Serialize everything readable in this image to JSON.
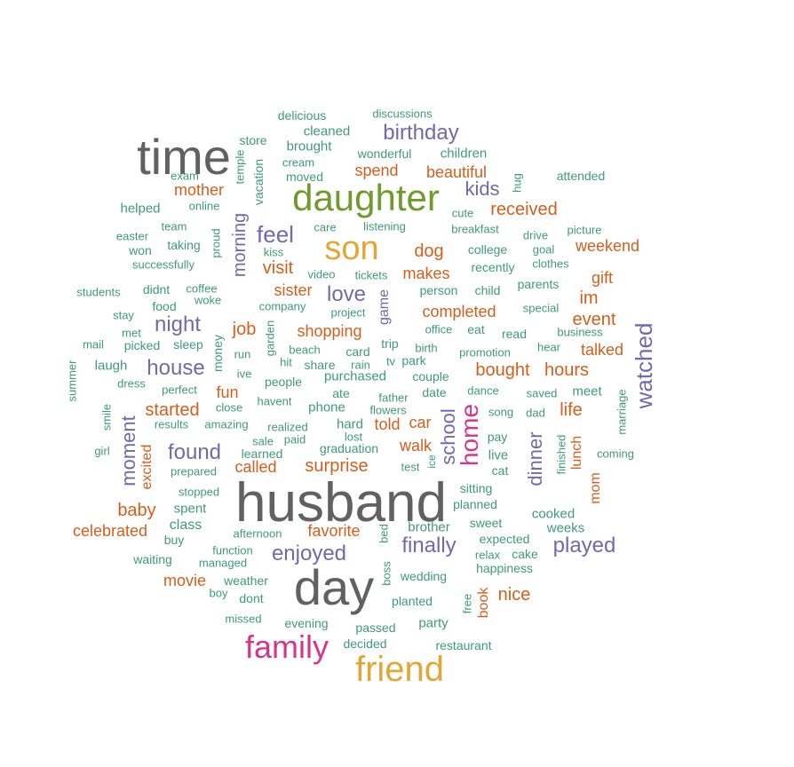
{
  "palette": {
    "teal": "#3f9a78",
    "orange": "#d45f1c",
    "purple": "#6f6aad",
    "gray": "#616161",
    "olive": "#6f9b2d",
    "gold": "#e3a634",
    "magenta": "#d6368a"
  },
  "words": [
    {
      "text": "husband",
      "color": "gray",
      "weight": 100
    },
    {
      "text": "time",
      "color": "gray",
      "weight": 75
    },
    {
      "text": "day",
      "color": "gray",
      "weight": 80
    },
    {
      "text": "daughter",
      "color": "olive",
      "weight": 62
    },
    {
      "text": "son",
      "color": "gold",
      "weight": 60
    },
    {
      "text": "friend",
      "color": "gold",
      "weight": 58
    },
    {
      "text": "family",
      "color": "magenta",
      "weight": 50
    },
    {
      "text": "home",
      "color": "magenta",
      "weight": 40
    },
    {
      "text": "birthday",
      "color": "purple",
      "weight": 30
    },
    {
      "text": "kids",
      "color": "purple",
      "weight": 28
    },
    {
      "text": "feel",
      "color": "purple",
      "weight": 32
    },
    {
      "text": "love",
      "color": "purple",
      "weight": 30
    },
    {
      "text": "night",
      "color": "purple",
      "weight": 30
    },
    {
      "text": "house",
      "color": "purple",
      "weight": 28
    },
    {
      "text": "found",
      "color": "purple",
      "weight": 30
    },
    {
      "text": "enjoyed",
      "color": "purple",
      "weight": 30
    },
    {
      "text": "finally",
      "color": "purple",
      "weight": 30
    },
    {
      "text": "played",
      "color": "purple",
      "weight": 30
    },
    {
      "text": "watched",
      "color": "purple",
      "weight": 32
    },
    {
      "text": "moment",
      "color": "purple",
      "weight": 28
    },
    {
      "text": "morning",
      "color": "purple",
      "weight": 26
    },
    {
      "text": "school",
      "color": "purple",
      "weight": 28
    },
    {
      "text": "dinner",
      "color": "purple",
      "weight": 28
    },
    {
      "text": "received",
      "color": "orange",
      "weight": 22
    },
    {
      "text": "mother",
      "color": "orange",
      "weight": 20
    },
    {
      "text": "spend",
      "color": "orange",
      "weight": 20
    },
    {
      "text": "beautiful",
      "color": "orange",
      "weight": 20
    },
    {
      "text": "dog",
      "color": "orange",
      "weight": 22
    },
    {
      "text": "weekend",
      "color": "orange",
      "weight": 20
    },
    {
      "text": "visit",
      "color": "orange",
      "weight": 22
    },
    {
      "text": "makes",
      "color": "orange",
      "weight": 20
    },
    {
      "text": "gift",
      "color": "orange",
      "weight": 20
    },
    {
      "text": "sister",
      "color": "orange",
      "weight": 20
    },
    {
      "text": "im",
      "color": "orange",
      "weight": 20
    },
    {
      "text": "completed",
      "color": "orange",
      "weight": 20
    },
    {
      "text": "event",
      "color": "orange",
      "weight": 22
    },
    {
      "text": "job",
      "color": "orange",
      "weight": 22
    },
    {
      "text": "shopping",
      "color": "orange",
      "weight": 20
    },
    {
      "text": "talked",
      "color": "orange",
      "weight": 20
    },
    {
      "text": "bought",
      "color": "orange",
      "weight": 22
    },
    {
      "text": "hours",
      "color": "orange",
      "weight": 22
    },
    {
      "text": "fun",
      "color": "orange",
      "weight": 20
    },
    {
      "text": "started",
      "color": "orange",
      "weight": 22
    },
    {
      "text": "life",
      "color": "orange",
      "weight": 22
    },
    {
      "text": "told",
      "color": "orange",
      "weight": 20
    },
    {
      "text": "car",
      "color": "orange",
      "weight": 20
    },
    {
      "text": "walk",
      "color": "orange",
      "weight": 20
    },
    {
      "text": "called",
      "color": "orange",
      "weight": 20
    },
    {
      "text": "surprise",
      "color": "orange",
      "weight": 22
    },
    {
      "text": "excited",
      "color": "orange",
      "weight": 18
    },
    {
      "text": "lunch",
      "color": "orange",
      "weight": 18
    },
    {
      "text": "mom",
      "color": "orange",
      "weight": 18
    },
    {
      "text": "baby",
      "color": "orange",
      "weight": 22
    },
    {
      "text": "celebrated",
      "color": "orange",
      "weight": 20
    },
    {
      "text": "favorite",
      "color": "orange",
      "weight": 20
    },
    {
      "text": "movie",
      "color": "orange",
      "weight": 20
    },
    {
      "text": "nice",
      "color": "orange",
      "weight": 22
    },
    {
      "text": "book",
      "color": "orange",
      "weight": 18
    },
    {
      "text": "game",
      "color": "purple",
      "weight": 18
    },
    {
      "text": "delicious",
      "color": "teal",
      "weight": 16
    },
    {
      "text": "discussions",
      "color": "teal",
      "weight": 14
    },
    {
      "text": "cleaned",
      "color": "teal",
      "weight": 16
    },
    {
      "text": "store",
      "color": "teal",
      "weight": 16
    },
    {
      "text": "brought",
      "color": "teal",
      "weight": 17
    },
    {
      "text": "wonderful",
      "color": "teal",
      "weight": 16
    },
    {
      "text": "children",
      "color": "teal",
      "weight": 17
    },
    {
      "text": "cream",
      "color": "teal",
      "weight": 14
    },
    {
      "text": "temple",
      "color": "teal",
      "weight": 14
    },
    {
      "text": "vacation",
      "color": "teal",
      "weight": 16
    },
    {
      "text": "exam",
      "color": "teal",
      "weight": 14
    },
    {
      "text": "moved",
      "color": "teal",
      "weight": 16
    },
    {
      "text": "hug",
      "color": "teal",
      "weight": 14
    },
    {
      "text": "attended",
      "color": "teal",
      "weight": 16
    },
    {
      "text": "helped",
      "color": "teal",
      "weight": 16
    },
    {
      "text": "online",
      "color": "teal",
      "weight": 14
    },
    {
      "text": "cute",
      "color": "teal",
      "weight": 14
    },
    {
      "text": "easter",
      "color": "teal",
      "weight": 14
    },
    {
      "text": "team",
      "color": "teal",
      "weight": 14
    },
    {
      "text": "care",
      "color": "teal",
      "weight": 14
    },
    {
      "text": "listening",
      "color": "teal",
      "weight": 14
    },
    {
      "text": "breakfast",
      "color": "teal",
      "weight": 14
    },
    {
      "text": "drive",
      "color": "teal",
      "weight": 14
    },
    {
      "text": "picture",
      "color": "teal",
      "weight": 14
    },
    {
      "text": "proud",
      "color": "teal",
      "weight": 14
    },
    {
      "text": "won",
      "color": "teal",
      "weight": 16
    },
    {
      "text": "taking",
      "color": "teal",
      "weight": 16
    },
    {
      "text": "kiss",
      "color": "teal",
      "weight": 14
    },
    {
      "text": "college",
      "color": "teal",
      "weight": 16
    },
    {
      "text": "goal",
      "color": "teal",
      "weight": 14
    },
    {
      "text": "successfully",
      "color": "teal",
      "weight": 14
    },
    {
      "text": "recently",
      "color": "teal",
      "weight": 16
    },
    {
      "text": "clothes",
      "color": "teal",
      "weight": 14
    },
    {
      "text": "video",
      "color": "teal",
      "weight": 14
    },
    {
      "text": "tickets",
      "color": "teal",
      "weight": 14
    },
    {
      "text": "students",
      "color": "teal",
      "weight": 14
    },
    {
      "text": "didnt",
      "color": "teal",
      "weight": 16
    },
    {
      "text": "coffee",
      "color": "teal",
      "weight": 14
    },
    {
      "text": "person",
      "color": "teal",
      "weight": 16
    },
    {
      "text": "child",
      "color": "teal",
      "weight": 16
    },
    {
      "text": "parents",
      "color": "teal",
      "weight": 16
    },
    {
      "text": "food",
      "color": "teal",
      "weight": 16
    },
    {
      "text": "woke",
      "color": "teal",
      "weight": 14
    },
    {
      "text": "company",
      "color": "teal",
      "weight": 14
    },
    {
      "text": "project",
      "color": "teal",
      "weight": 14
    },
    {
      "text": "special",
      "color": "teal",
      "weight": 14
    },
    {
      "text": "stay",
      "color": "teal",
      "weight": 14
    },
    {
      "text": "office",
      "color": "teal",
      "weight": 14
    },
    {
      "text": "business",
      "color": "teal",
      "weight": 14
    },
    {
      "text": "met",
      "color": "teal",
      "weight": 14
    },
    {
      "text": "garden",
      "color": "teal",
      "weight": 14
    },
    {
      "text": "eat",
      "color": "teal",
      "weight": 16
    },
    {
      "text": "read",
      "color": "teal",
      "weight": 16
    },
    {
      "text": "mail",
      "color": "teal",
      "weight": 14
    },
    {
      "text": "picked",
      "color": "teal",
      "weight": 16
    },
    {
      "text": "sleep",
      "color": "teal",
      "weight": 16
    },
    {
      "text": "money",
      "color": "teal",
      "weight": 16
    },
    {
      "text": "beach",
      "color": "teal",
      "weight": 14
    },
    {
      "text": "card",
      "color": "teal",
      "weight": 14
    },
    {
      "text": "trip",
      "color": "teal",
      "weight": 16
    },
    {
      "text": "birth",
      "color": "teal",
      "weight": 14
    },
    {
      "text": "hear",
      "color": "teal",
      "weight": 14
    },
    {
      "text": "summer",
      "color": "teal",
      "weight": 14
    },
    {
      "text": "laugh",
      "color": "teal",
      "weight": 16
    },
    {
      "text": "run",
      "color": "teal",
      "weight": 14
    },
    {
      "text": "hit",
      "color": "teal",
      "weight": 14
    },
    {
      "text": "share",
      "color": "teal",
      "weight": 14
    },
    {
      "text": "rain",
      "color": "teal",
      "weight": 14
    },
    {
      "text": "tv",
      "color": "teal",
      "weight": 14
    },
    {
      "text": "park",
      "color": "teal",
      "weight": 16
    },
    {
      "text": "promotion",
      "color": "teal",
      "weight": 14
    },
    {
      "text": "dress",
      "color": "teal",
      "weight": 14
    },
    {
      "text": "ive",
      "color": "teal",
      "weight": 14
    },
    {
      "text": "purchased",
      "color": "teal",
      "weight": 16
    },
    {
      "text": "couple",
      "color": "teal",
      "weight": 16
    },
    {
      "text": "perfect",
      "color": "teal",
      "weight": 14
    },
    {
      "text": "people",
      "color": "teal",
      "weight": 16
    },
    {
      "text": "ate",
      "color": "teal",
      "weight": 16
    },
    {
      "text": "father",
      "color": "teal",
      "weight": 14
    },
    {
      "text": "date",
      "color": "teal",
      "weight": 16
    },
    {
      "text": "dance",
      "color": "teal",
      "weight": 14
    },
    {
      "text": "saved",
      "color": "teal",
      "weight": 14
    },
    {
      "text": "meet",
      "color": "teal",
      "weight": 16
    },
    {
      "text": "marriage",
      "color": "teal",
      "weight": 14
    },
    {
      "text": "smile",
      "color": "teal",
      "weight": 14
    },
    {
      "text": "close",
      "color": "teal",
      "weight": 14
    },
    {
      "text": "havent",
      "color": "teal",
      "weight": 14
    },
    {
      "text": "phone",
      "color": "teal",
      "weight": 16
    },
    {
      "text": "flowers",
      "color": "teal",
      "weight": 14
    },
    {
      "text": "song",
      "color": "teal",
      "weight": 14
    },
    {
      "text": "dad",
      "color": "teal",
      "weight": 14
    },
    {
      "text": "results",
      "color": "teal",
      "weight": 14
    },
    {
      "text": "amazing",
      "color": "teal",
      "weight": 14
    },
    {
      "text": "realized",
      "color": "teal",
      "weight": 14
    },
    {
      "text": "hard",
      "color": "teal",
      "weight": 16
    },
    {
      "text": "finished",
      "color": "teal",
      "weight": 14
    },
    {
      "text": "sale",
      "color": "teal",
      "weight": 14
    },
    {
      "text": "paid",
      "color": "teal",
      "weight": 14
    },
    {
      "text": "lost",
      "color": "teal",
      "weight": 14
    },
    {
      "text": "pay",
      "color": "teal",
      "weight": 14
    },
    {
      "text": "girl",
      "color": "teal",
      "weight": 14
    },
    {
      "text": "learned",
      "color": "teal",
      "weight": 14
    },
    {
      "text": "graduation",
      "color": "teal",
      "weight": 14
    },
    {
      "text": "live",
      "color": "teal",
      "weight": 16
    },
    {
      "text": "coming",
      "color": "teal",
      "weight": 14
    },
    {
      "text": "prepared",
      "color": "teal",
      "weight": 14
    },
    {
      "text": "test",
      "color": "teal",
      "weight": 14
    },
    {
      "text": "ice",
      "color": "teal",
      "weight": 14
    },
    {
      "text": "cat",
      "color": "teal",
      "weight": 16
    },
    {
      "text": "stopped",
      "color": "teal",
      "weight": 14
    },
    {
      "text": "sitting",
      "color": "teal",
      "weight": 16
    },
    {
      "text": "spent",
      "color": "teal",
      "weight": 16
    },
    {
      "text": "planned",
      "color": "teal",
      "weight": 16
    },
    {
      "text": "cooked",
      "color": "teal",
      "weight": 16
    },
    {
      "text": "class",
      "color": "teal",
      "weight": 16
    },
    {
      "text": "sweet",
      "color": "teal",
      "weight": 14
    },
    {
      "text": "buy",
      "color": "teal",
      "weight": 16
    },
    {
      "text": "afternoon",
      "color": "teal",
      "weight": 14
    },
    {
      "text": "brother",
      "color": "teal",
      "weight": 16
    },
    {
      "text": "weeks",
      "color": "teal",
      "weight": 16
    },
    {
      "text": "bed",
      "color": "teal",
      "weight": 14
    },
    {
      "text": "expected",
      "color": "teal",
      "weight": 14
    },
    {
      "text": "function",
      "color": "teal",
      "weight": 14
    },
    {
      "text": "relax",
      "color": "teal",
      "weight": 14
    },
    {
      "text": "cake",
      "color": "teal",
      "weight": 14
    },
    {
      "text": "waiting",
      "color": "teal",
      "weight": 14
    },
    {
      "text": "managed",
      "color": "teal",
      "weight": 14
    },
    {
      "text": "happiness",
      "color": "teal",
      "weight": 14
    },
    {
      "text": "boss",
      "color": "teal",
      "weight": 14
    },
    {
      "text": "weather",
      "color": "teal",
      "weight": 14
    },
    {
      "text": "wedding",
      "color": "teal",
      "weight": 14
    },
    {
      "text": "boy",
      "color": "teal",
      "weight": 14
    },
    {
      "text": "dont",
      "color": "teal",
      "weight": 14
    },
    {
      "text": "planted",
      "color": "teal",
      "weight": 14
    },
    {
      "text": "free",
      "color": "teal",
      "weight": 14
    },
    {
      "text": "missed",
      "color": "teal",
      "weight": 14
    },
    {
      "text": "evening",
      "color": "teal",
      "weight": 14
    },
    {
      "text": "party",
      "color": "teal",
      "weight": 16
    },
    {
      "text": "passed",
      "color": "teal",
      "weight": 14
    },
    {
      "text": "decided",
      "color": "teal",
      "weight": 14
    },
    {
      "text": "restaurant",
      "color": "teal",
      "weight": 14
    }
  ]
}
